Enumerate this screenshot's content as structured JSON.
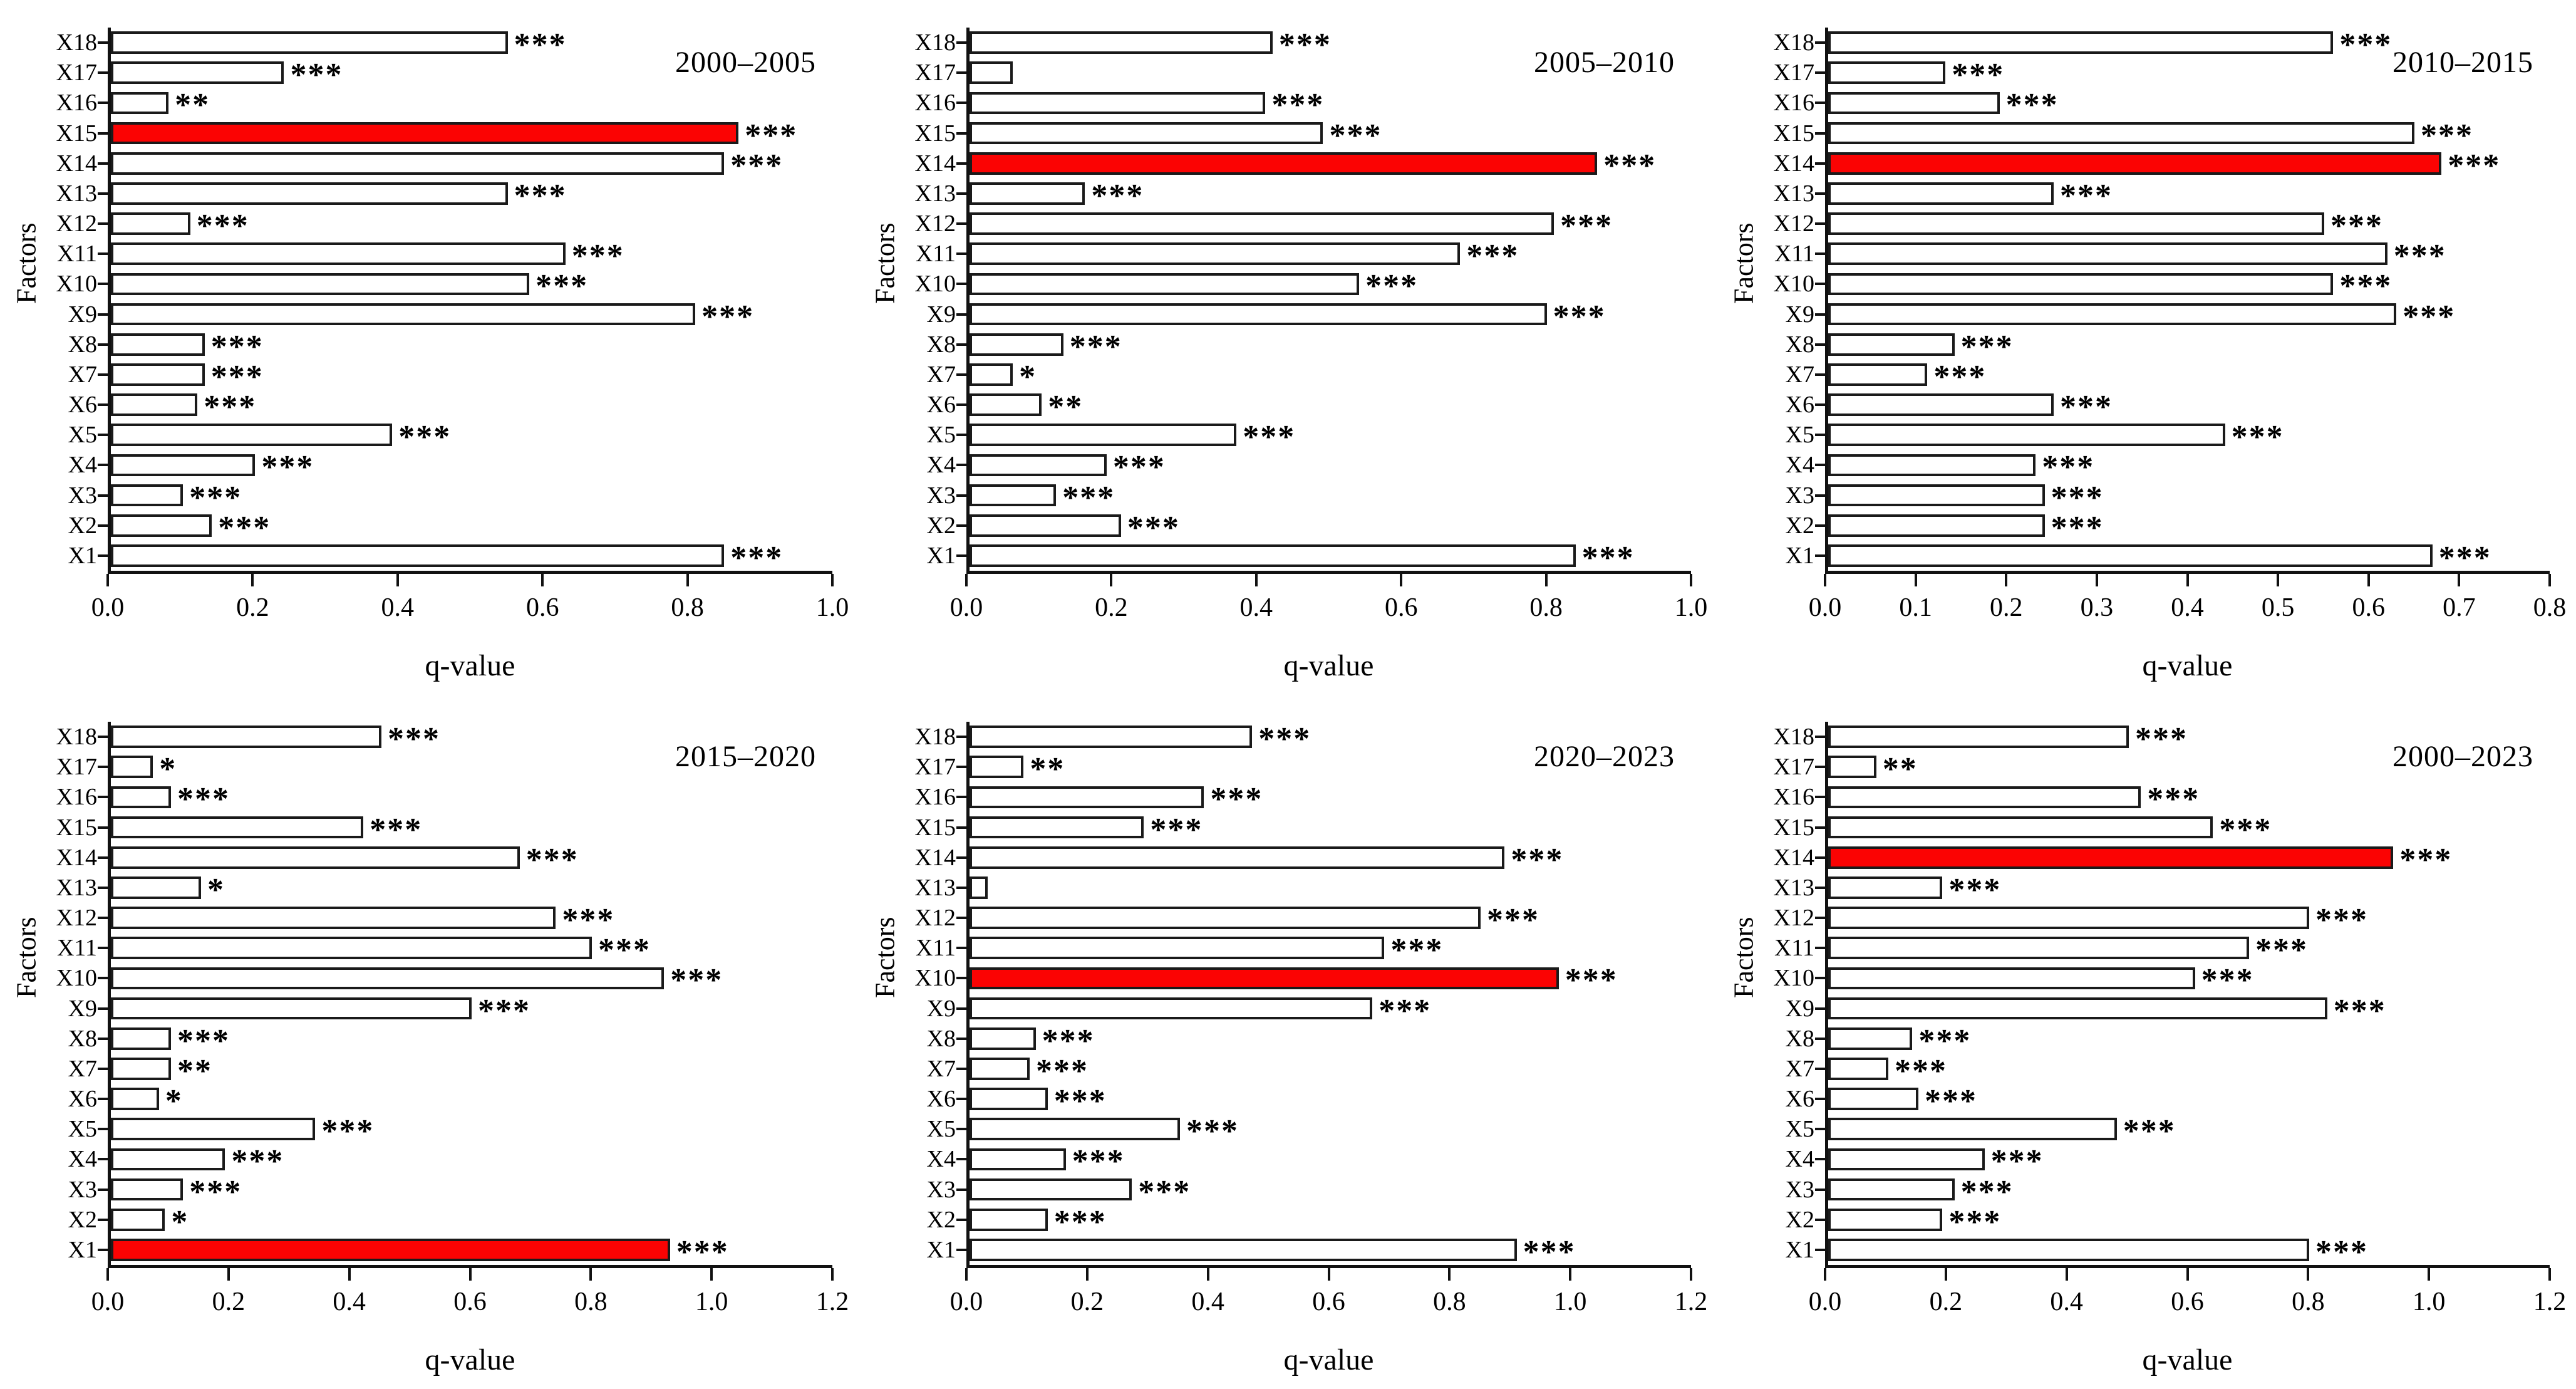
{
  "figure": {
    "x_axis_label": "q-value",
    "y_axis_label": "Factors",
    "bar_fill": "#ffffff",
    "bar_border": "#1a1a1a",
    "highlight_fill": "#fb0303",
    "text_color": "#000000"
  },
  "chart_data": [
    {
      "type": "bar",
      "title": "2000–2005",
      "xlabel": "q-value",
      "ylabel": "Factors",
      "xlim": [
        0,
        1.0
      ],
      "xticks": [
        "0.0",
        "0.2",
        "0.4",
        "0.6",
        "0.8",
        "1.0"
      ],
      "categories": [
        "X18",
        "X17",
        "X16",
        "X15",
        "X14",
        "X13",
        "X12",
        "X11",
        "X10",
        "X9",
        "X8",
        "X7",
        "X6",
        "X5",
        "X4",
        "X3",
        "X2",
        "X1"
      ],
      "values": [
        0.55,
        0.24,
        0.08,
        0.87,
        0.85,
        0.55,
        0.11,
        0.63,
        0.58,
        0.81,
        0.13,
        0.13,
        0.12,
        0.39,
        0.2,
        0.1,
        0.14,
        0.85
      ],
      "significance": [
        "***",
        "***",
        "**",
        "***",
        "***",
        "***",
        "***",
        "***",
        "***",
        "***",
        "***",
        "***",
        "***",
        "***",
        "***",
        "***",
        "***",
        "***"
      ],
      "highlight": "X15",
      "legend": "none",
      "grid": "off"
    },
    {
      "type": "bar",
      "title": "2005–2010",
      "xlabel": "q-value",
      "ylabel": "Factors",
      "xlim": [
        0,
        1.0
      ],
      "xticks": [
        "0.0",
        "0.2",
        "0.4",
        "0.6",
        "0.8",
        "1.0"
      ],
      "categories": [
        "X18",
        "X17",
        "X16",
        "X15",
        "X14",
        "X13",
        "X12",
        "X11",
        "X10",
        "X9",
        "X8",
        "X7",
        "X6",
        "X5",
        "X4",
        "X3",
        "X2",
        "X1"
      ],
      "values": [
        0.42,
        0.06,
        0.41,
        0.49,
        0.87,
        0.16,
        0.81,
        0.68,
        0.54,
        0.8,
        0.13,
        0.06,
        0.1,
        0.37,
        0.19,
        0.12,
        0.21,
        0.84
      ],
      "significance": [
        "***",
        "",
        "***",
        "***",
        "***",
        "***",
        "***",
        "***",
        "***",
        "***",
        "***",
        "*",
        "**",
        "***",
        "***",
        "***",
        "***",
        "***"
      ],
      "highlight": "X14",
      "legend": "none",
      "grid": "off"
    },
    {
      "type": "bar",
      "title": "2010–2015",
      "xlabel": "q-value",
      "ylabel": "Factors",
      "xlim": [
        0,
        0.8
      ],
      "xticks": [
        "0.0",
        "0.1",
        "0.2",
        "0.3",
        "0.4",
        "0.5",
        "0.6",
        "0.7",
        "0.8"
      ],
      "categories": [
        "X18",
        "X17",
        "X16",
        "X15",
        "X14",
        "X13",
        "X12",
        "X11",
        "X10",
        "X9",
        "X8",
        "X7",
        "X6",
        "X5",
        "X4",
        "X3",
        "X2",
        "X1"
      ],
      "values": [
        0.56,
        0.13,
        0.19,
        0.65,
        0.68,
        0.25,
        0.55,
        0.62,
        0.56,
        0.63,
        0.14,
        0.11,
        0.25,
        0.44,
        0.23,
        0.24,
        0.24,
        0.67
      ],
      "significance": [
        "***",
        "***",
        "***",
        "***",
        "***",
        "***",
        "***",
        "***",
        "***",
        "***",
        "***",
        "***",
        "***",
        "***",
        "***",
        "***",
        "***",
        "***"
      ],
      "highlight": "X14",
      "legend": "none",
      "grid": "off"
    },
    {
      "type": "bar",
      "title": "2015–2020",
      "xlabel": "q-value",
      "ylabel": "Factors",
      "xlim": [
        0,
        1.2
      ],
      "xticks": [
        "0.0",
        "0.2",
        "0.4",
        "0.6",
        "0.8",
        "1.0",
        "1.2"
      ],
      "categories": [
        "X18",
        "X17",
        "X16",
        "X15",
        "X14",
        "X13",
        "X12",
        "X11",
        "X10",
        "X9",
        "X8",
        "X7",
        "X6",
        "X5",
        "X4",
        "X3",
        "X2",
        "X1"
      ],
      "values": [
        0.45,
        0.07,
        0.1,
        0.42,
        0.68,
        0.15,
        0.74,
        0.8,
        0.92,
        0.6,
        0.1,
        0.1,
        0.08,
        0.34,
        0.19,
        0.12,
        0.09,
        0.93
      ],
      "significance": [
        "***",
        "*",
        "***",
        "***",
        "***",
        "*",
        "***",
        "***",
        "***",
        "***",
        "***",
        "**",
        "*",
        "***",
        "***",
        "***",
        "*",
        "***"
      ],
      "highlight": "X1",
      "legend": "none",
      "grid": "off"
    },
    {
      "type": "bar",
      "title": "2020–2023",
      "xlabel": "q-value",
      "ylabel": "Factors",
      "xlim": [
        0,
        1.2
      ],
      "xticks": [
        "0.0",
        "0.2",
        "0.4",
        "0.6",
        "0.8",
        "1.0",
        "1.2"
      ],
      "categories": [
        "X18",
        "X17",
        "X16",
        "X15",
        "X14",
        "X13",
        "X12",
        "X11",
        "X10",
        "X9",
        "X8",
        "X7",
        "X6",
        "X5",
        "X4",
        "X3",
        "X2",
        "X1"
      ],
      "values": [
        0.47,
        0.09,
        0.39,
        0.29,
        0.89,
        0.03,
        0.85,
        0.69,
        0.98,
        0.67,
        0.11,
        0.1,
        0.13,
        0.35,
        0.16,
        0.27,
        0.13,
        0.91
      ],
      "significance": [
        "***",
        "**",
        "***",
        "***",
        "***",
        "",
        "***",
        "***",
        "***",
        "***",
        "***",
        "***",
        "***",
        "***",
        "***",
        "***",
        "***",
        "***"
      ],
      "highlight": "X10",
      "legend": "none",
      "grid": "off"
    },
    {
      "type": "bar",
      "title": "2000–2023",
      "xlabel": "q-value",
      "ylabel": "Factors",
      "xlim": [
        0,
        1.2
      ],
      "xticks": [
        "0.0",
        "0.2",
        "0.4",
        "0.6",
        "0.8",
        "1.0",
        "1.2"
      ],
      "categories": [
        "X18",
        "X17",
        "X16",
        "X15",
        "X14",
        "X13",
        "X12",
        "X11",
        "X10",
        "X9",
        "X8",
        "X7",
        "X6",
        "X5",
        "X4",
        "X3",
        "X2",
        "X1"
      ],
      "values": [
        0.5,
        0.08,
        0.52,
        0.64,
        0.94,
        0.19,
        0.8,
        0.7,
        0.61,
        0.83,
        0.14,
        0.1,
        0.15,
        0.48,
        0.26,
        0.21,
        0.19,
        0.8
      ],
      "significance": [
        "***",
        "**",
        "***",
        "***",
        "***",
        "***",
        "***",
        "***",
        "***",
        "***",
        "***",
        "***",
        "***",
        "***",
        "***",
        "***",
        "***",
        "***"
      ],
      "highlight": "X14",
      "legend": "none",
      "grid": "off"
    }
  ]
}
